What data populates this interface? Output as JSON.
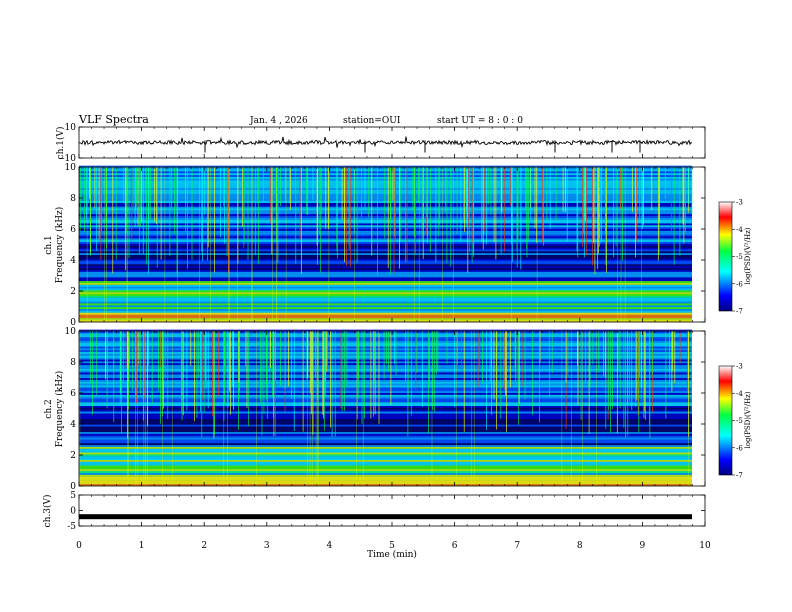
{
  "header": {
    "title": "VLF Spectra",
    "date": "Jan. 4 , 2026",
    "station": "station=OUI",
    "start_time": "start UT =  8 : 0 : 0"
  },
  "chart_data": [
    {
      "type": "line",
      "panel": "ch1-waveform",
      "ylabel": "ch.1(V)",
      "ylim": [
        -10,
        10
      ],
      "ytick_labels": [
        "10",
        "-10"
      ],
      "trace_level": 0,
      "trace_color": "#000000"
    },
    {
      "type": "heatmap",
      "panel": "ch1-spectrogram",
      "ylabel": "ch.1  Frequency (kHz)",
      "ylim": [
        0,
        10
      ],
      "ytick_labels": [
        "0",
        "2",
        "4",
        "6",
        "8",
        "10"
      ],
      "colorbar": {
        "label": "log(PSD)(V²/Hz)",
        "range": [
          -7,
          -3
        ],
        "tick_labels": [
          "-3",
          "-4",
          "-5",
          "-6",
          "-7"
        ]
      }
    },
    {
      "type": "heatmap",
      "panel": "ch2-spectrogram",
      "ylabel": "ch.2  Frequency (kHz)",
      "ylim": [
        0,
        10
      ],
      "ytick_labels": [
        "0",
        "2",
        "4",
        "6",
        "8",
        "10"
      ],
      "colorbar": {
        "label": "log(PSD)(V²/Hz)",
        "range": [
          -7,
          -3
        ],
        "tick_labels": [
          "-3",
          "-4",
          "-5",
          "-6",
          "-7"
        ]
      }
    },
    {
      "type": "line",
      "panel": "ch3-waveform",
      "ylabel": "ch.3(V)",
      "ylim": [
        -5,
        5
      ],
      "ytick_labels": [
        "5",
        "0",
        "-5"
      ],
      "trace_level": -2,
      "trace_color": "#000000"
    }
  ],
  "xaxis": {
    "label": "Time (min)",
    "range": [
      0,
      10
    ],
    "tick_labels": [
      "0",
      "1",
      "2",
      "3",
      "4",
      "5",
      "6",
      "7",
      "8",
      "9",
      "10"
    ]
  },
  "ylabels": {
    "ch1_wave": "ch.1(V)",
    "ch1_spec_a": "ch.1",
    "ch1_spec_b": "Frequency (kHz)",
    "ch2_spec_a": "ch.2",
    "ch2_spec_b": "Frequency (kHz)",
    "ch3_wave": "ch.3(V)"
  },
  "colorbar_label": "log(PSD)(V²/Hz)"
}
